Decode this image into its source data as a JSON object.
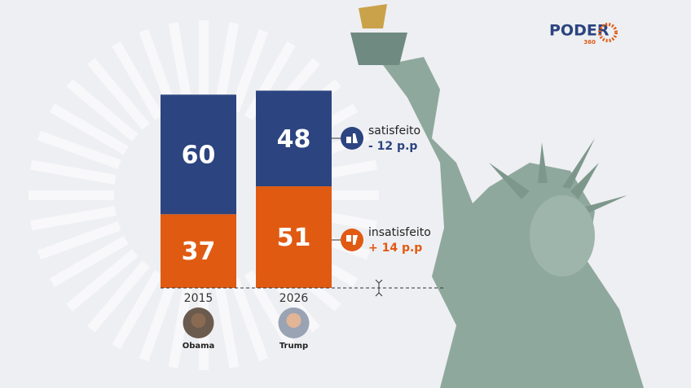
{
  "chart_data": {
    "type": "stacked-bar",
    "categories": [
      "2015",
      "2026"
    ],
    "sublabels": [
      "Obama",
      "Trump"
    ],
    "series": [
      {
        "name": "satisfeito",
        "color": "#2c4480",
        "values": [
          60,
          48
        ]
      },
      {
        "name": "insatisfeito",
        "color": "#e05a12",
        "values": [
          37,
          51
        ]
      }
    ],
    "annotations": [
      "- 12 p.p",
      "+ 14 p.p"
    ],
    "brand": "PODER",
    "brand_sub": "360"
  }
}
